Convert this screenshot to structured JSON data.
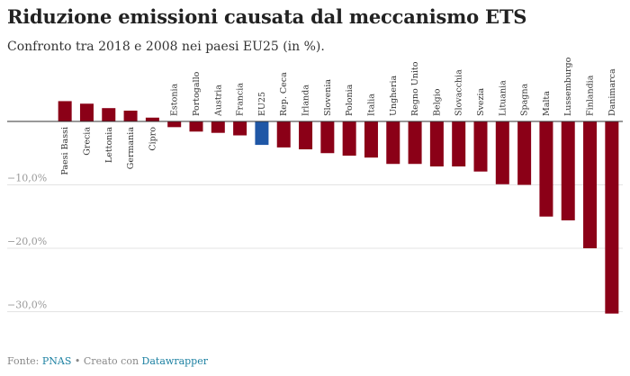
{
  "title": "Riduzione emissioni causata dal meccanismo ETS",
  "subtitle": "Confronto tra 2018 e 2008 nei paesi EU25 (in %).",
  "footer": {
    "source_label": "Fonte:",
    "source_name": "PNAS",
    "separator": "•",
    "credit_label": "Creato con",
    "credit_name": "Datawrapper"
  },
  "colors": {
    "bar": "#8b0017",
    "highlight": "#1f57a6",
    "grid": "#e3e3e3",
    "link": "#1d81a2"
  },
  "chart_data": {
    "type": "bar",
    "title": "Riduzione emissioni causata dal meccanismo ETS",
    "subtitle": "Confronto tra 2018 e 2008 nei paesi EU25 (in %).",
    "categories": [
      "Paesi Bassi",
      "Grecia",
      "Lettonia",
      "Germania",
      "Cipro",
      "Estonia",
      "Portogallo",
      "Austria",
      "Francia",
      "EU25",
      "Rep. Ceca",
      "Irlanda",
      "Slovenia",
      "Polonia",
      "Italia",
      "Ungheria",
      "Regno Unito",
      "Belgio",
      "Slovacchia",
      "Svezia",
      "Lituania",
      "Spagna",
      "Malta",
      "Lussemburgo",
      "Finlandia",
      "Danimarca"
    ],
    "values": [
      3.2,
      2.8,
      2.1,
      1.7,
      0.6,
      -0.9,
      -1.6,
      -1.8,
      -2.2,
      -3.7,
      -4.1,
      -4.4,
      -5.0,
      -5.4,
      -5.7,
      -6.7,
      -6.7,
      -7.1,
      -7.1,
      -7.9,
      -9.9,
      -10.0,
      -15.0,
      -15.6,
      -20.0,
      -30.3
    ],
    "highlight": "EU25",
    "ylim": [
      -31,
      4
    ],
    "yticks": [
      0,
      -10,
      -20,
      -30
    ],
    "ytick_labels": [
      "",
      "−10,0%",
      "−20,0%",
      "−30,0%"
    ],
    "grid": true,
    "xlabel": "",
    "ylabel": ""
  }
}
